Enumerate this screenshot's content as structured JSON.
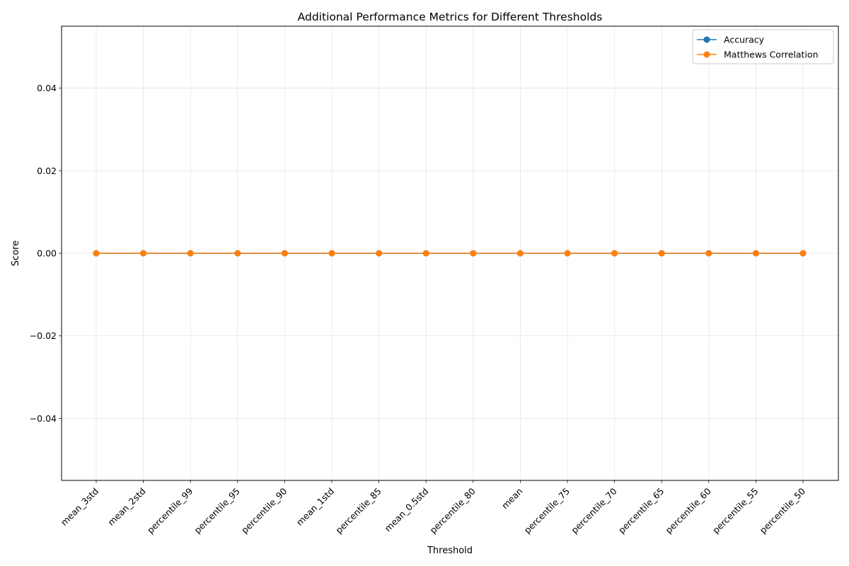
{
  "chart_data": {
    "type": "line",
    "title": "Additional Performance Metrics for Different Thresholds",
    "xlabel": "Threshold",
    "ylabel": "Score",
    "categories": [
      "mean_3std",
      "mean_2std",
      "percentile_99",
      "percentile_95",
      "percentile_90",
      "mean_1std",
      "percentile_85",
      "mean_0.5std",
      "percentile_80",
      "mean",
      "percentile_75",
      "percentile_70",
      "percentile_65",
      "percentile_60",
      "percentile_55",
      "percentile_50"
    ],
    "series": [
      {
        "name": "Accuracy",
        "color": "#1f77b4",
        "values": [
          0,
          0,
          0,
          0,
          0,
          0,
          0,
          0,
          0,
          0,
          0,
          0,
          0,
          0,
          0,
          0
        ]
      },
      {
        "name": "Matthews Correlation",
        "color": "#ff7f0e",
        "values": [
          0,
          0,
          0,
          0,
          0,
          0,
          0,
          0,
          0,
          0,
          0,
          0,
          0,
          0,
          0,
          0
        ]
      }
    ],
    "ylim": [
      -0.055,
      0.055
    ],
    "yticks": [
      0.04,
      0.02,
      0.0,
      -0.02,
      -0.04
    ],
    "ytick_labels": [
      "0.04",
      "0.02",
      "0.00",
      "−0.02",
      "−0.04"
    ],
    "grid": true,
    "legend_position": "upper right"
  }
}
